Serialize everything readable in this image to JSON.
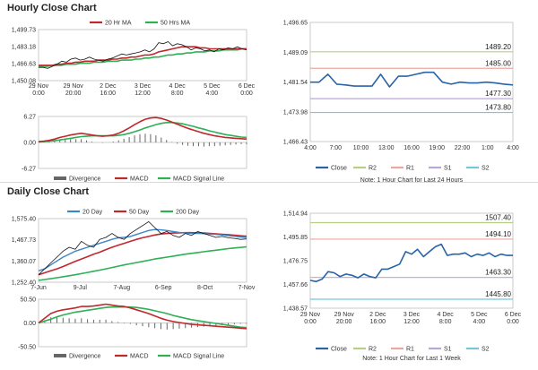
{
  "hourly": {
    "title": "Hourly Close Chart",
    "price_chart": {
      "type": "line",
      "legend": [
        "20 Hr MA",
        "50 Hrs MA"
      ],
      "legend_colors": [
        "#c0282d",
        "#2eb055"
      ],
      "y_ticks": [
        "1,499.73",
        "1,483.18",
        "1,466.63",
        "1,450.08"
      ],
      "ylim": [
        1450.08,
        1499.73
      ],
      "x_ticks": [
        "29 Nov\n0:00",
        "29 Nov\n20:00",
        "2 Dec\n16:00",
        "3 Dec\n12:00",
        "4 Dec\n8:00",
        "5 Dec\n4:00",
        "6 Dec\n0:00"
      ],
      "close": [
        1463,
        1463,
        1462,
        1464,
        1466,
        1469,
        1468,
        1471,
        1472,
        1470,
        1471,
        1473,
        1471,
        1470,
        1469,
        1471,
        1472,
        1474,
        1476,
        1475,
        1476,
        1477,
        1478,
        1480,
        1478,
        1481,
        1487,
        1486,
        1488,
        1484,
        1486,
        1485,
        1483,
        1480,
        1482,
        1481,
        1479,
        1480,
        1478,
        1481,
        1480,
        1482,
        1481,
        1483,
        1481,
        1480
      ],
      "ma20": [
        1465,
        1465,
        1465,
        1465,
        1466,
        1466,
        1467,
        1467,
        1468,
        1468,
        1469,
        1469,
        1469,
        1470,
        1470,
        1470,
        1471,
        1471,
        1472,
        1472,
        1473,
        1473,
        1474,
        1475,
        1475,
        1476,
        1478,
        1479,
        1480,
        1481,
        1482,
        1483,
        1483,
        1483,
        1483,
        1482,
        1482,
        1481,
        1481,
        1481,
        1481,
        1481,
        1481,
        1481,
        1481,
        1481
      ],
      "ma50": [
        1464,
        1464,
        1464,
        1465,
        1465,
        1465,
        1466,
        1466,
        1466,
        1467,
        1467,
        1467,
        1468,
        1468,
        1468,
        1469,
        1469,
        1469,
        1470,
        1470,
        1470,
        1471,
        1471,
        1472,
        1472,
        1473,
        1473,
        1474,
        1475,
        1475,
        1476,
        1476,
        1477,
        1477,
        1478,
        1478,
        1478,
        1479,
        1479,
        1479,
        1480,
        1480,
        1480,
        1480,
        1481,
        1481
      ]
    },
    "macd_chart": {
      "type": "line",
      "y_ticks": [
        "6.27",
        "0.00",
        "-6.27"
      ],
      "ylim": [
        -6.27,
        6.27
      ],
      "legend": [
        "Divergence",
        "MACD",
        "MACD Signal Line"
      ],
      "legend_colors": [
        "#666666",
        "#c0282d",
        "#2eb055"
      ],
      "macd": [
        0.2,
        0.3,
        0.5,
        0.8,
        1.2,
        1.5,
        1.8,
        2.0,
        2.2,
        2.0,
        1.8,
        1.6,
        1.5,
        1.6,
        1.8,
        2.2,
        2.8,
        3.5,
        4.3,
        5.0,
        5.6,
        5.9,
        6.0,
        5.8,
        5.4,
        4.9,
        4.4,
        3.9,
        3.4,
        3.0,
        2.6,
        2.2,
        1.9,
        1.6,
        1.4,
        1.2,
        1.1,
        1.0,
        0.9,
        0.8
      ],
      "signal": [
        0.1,
        0.2,
        0.3,
        0.4,
        0.6,
        0.8,
        1.0,
        1.2,
        1.4,
        1.5,
        1.6,
        1.6,
        1.6,
        1.6,
        1.6,
        1.7,
        1.9,
        2.2,
        2.6,
        3.0,
        3.5,
        3.9,
        4.3,
        4.6,
        4.8,
        4.8,
        4.7,
        4.5,
        4.2,
        3.9,
        3.5,
        3.2,
        2.8,
        2.5,
        2.2,
        1.9,
        1.7,
        1.5,
        1.3,
        1.2
      ],
      "divergence": [
        0.1,
        0.1,
        0.2,
        0.4,
        0.6,
        0.7,
        0.8,
        0.8,
        0.8,
        0.5,
        0.2,
        0.0,
        -0.1,
        0.0,
        0.2,
        0.5,
        0.9,
        1.3,
        1.7,
        2.0,
        2.1,
        2.0,
        1.7,
        1.2,
        0.6,
        0.1,
        -0.3,
        -0.6,
        -0.8,
        -0.9,
        -0.9,
        -1.0,
        -0.9,
        -0.9,
        -0.8,
        -0.7,
        -0.6,
        -0.5,
        -0.4,
        -0.4
      ]
    },
    "recent_chart": {
      "type": "line",
      "y_ticks": [
        "1,496.65",
        "1,489.09",
        "1,481.54",
        "1,473.98",
        "1,466.43"
      ],
      "ylim": [
        1466.43,
        1496.65
      ],
      "x_ticks": [
        "4:00",
        "7:00",
        "10:00",
        "13:00",
        "16:00",
        "19:00",
        "22:00",
        "1:00",
        "4:00"
      ],
      "close": [
        1481.5,
        1481.5,
        1483.5,
        1481,
        1480.8,
        1480.5,
        1480.5,
        1480.5,
        1483.5,
        1480.3,
        1483,
        1483,
        1483.5,
        1484,
        1484,
        1481.5,
        1481,
        1481.5,
        1481.3,
        1481.3,
        1481.5,
        1481.3,
        1481,
        1480.8
      ],
      "levels": [
        {
          "name": "R2",
          "value": 1489.2,
          "label": "1489.20",
          "color": "#b5cf84"
        },
        {
          "name": "R1",
          "value": 1485.0,
          "label": "1485.00",
          "color": "#e8a8a0"
        },
        {
          "name": "S1",
          "value": 1477.3,
          "label": "1477.30",
          "color": "#b8a8d8"
        },
        {
          "name": "S2",
          "value": 1473.8,
          "label": "1473.80",
          "color": "#76c8d8"
        }
      ],
      "legend": [
        "Close",
        "R2",
        "R1",
        "S1",
        "S2"
      ],
      "legend_colors": [
        "#2a63a6",
        "#b5cf84",
        "#e8a8a0",
        "#b8a8d8",
        "#76c8d8"
      ],
      "note": "Note: 1 Hour Chart for Last 24 Hours"
    }
  },
  "daily": {
    "title": "Daily Close Chart",
    "price_chart": {
      "type": "line",
      "legend": [
        "20 Day",
        "50 Day",
        "200 Day"
      ],
      "legend_colors": [
        "#3a86c8",
        "#c0282d",
        "#2eb055"
      ],
      "y_ticks": [
        "1,575.40",
        "1,467.73",
        "1,360.07",
        "1,252.40"
      ],
      "ylim": [
        1252.4,
        1575.4
      ],
      "x_ticks": [
        "7-Jun",
        "9-Jul",
        "7-Aug",
        "6-Sep",
        "8-Oct",
        "7-Nov"
      ],
      "close": [
        1290,
        1320,
        1350,
        1380,
        1410,
        1430,
        1420,
        1460,
        1440,
        1430,
        1470,
        1480,
        1500,
        1480,
        1470,
        1500,
        1520,
        1540,
        1560,
        1530,
        1500,
        1510,
        1490,
        1480,
        1500,
        1490,
        1510,
        1500,
        1490,
        1480,
        1485,
        1478,
        1475,
        1470,
        1472
      ],
      "ma20": [
        1310,
        1320,
        1340,
        1360,
        1380,
        1395,
        1410,
        1420,
        1430,
        1440,
        1450,
        1460,
        1470,
        1478,
        1480,
        1485,
        1495,
        1505,
        1515,
        1520,
        1518,
        1515,
        1510,
        1505,
        1502,
        1500,
        1500,
        1499,
        1497,
        1495,
        1492,
        1489,
        1486,
        1482,
        1480
      ],
      "ma50": [
        1290,
        1300,
        1310,
        1320,
        1332,
        1345,
        1358,
        1370,
        1382,
        1395,
        1405,
        1418,
        1430,
        1440,
        1450,
        1460,
        1470,
        1478,
        1485,
        1492,
        1497,
        1500,
        1502,
        1503,
        1504,
        1504,
        1503,
        1502,
        1500,
        1498,
        1496,
        1494,
        1491,
        1488,
        1486
      ],
      "ma200": [
        1262,
        1266,
        1270,
        1275,
        1280,
        1285,
        1290,
        1296,
        1302,
        1308,
        1314,
        1320,
        1327,
        1334,
        1340,
        1346,
        1352,
        1358,
        1364,
        1370,
        1375,
        1380,
        1385,
        1390,
        1395,
        1399,
        1403,
        1407,
        1411,
        1415,
        1419,
        1423,
        1426,
        1429,
        1432
      ]
    },
    "macd_chart": {
      "type": "line",
      "y_ticks": [
        "50.50",
        "0.00",
        "-50.50"
      ],
      "ylim": [
        -50.5,
        50.5
      ],
      "legend": [
        "Divergence",
        "MACD",
        "MACD Signal Line"
      ],
      "legend_colors": [
        "#666666",
        "#c0282d",
        "#2eb055"
      ],
      "macd": [
        0,
        10,
        20,
        25,
        28,
        30,
        32,
        35,
        35,
        36,
        38,
        40,
        38,
        36,
        35,
        32,
        28,
        24,
        20,
        15,
        10,
        6,
        3,
        1,
        -1,
        -3,
        -4,
        -5,
        -6,
        -7,
        -8,
        -9,
        -10,
        -11,
        -12
      ],
      "signal": [
        0,
        4,
        8,
        13,
        17,
        20,
        23,
        25,
        27,
        29,
        31,
        33,
        34,
        34,
        34,
        34,
        33,
        31,
        29,
        26,
        23,
        20,
        16,
        13,
        10,
        7,
        5,
        3,
        1,
        -1,
        -3,
        -5,
        -7,
        -9,
        -10
      ],
      "divergence": [
        0,
        6,
        12,
        12,
        11,
        10,
        9,
        10,
        8,
        7,
        7,
        7,
        4,
        2,
        1,
        -2,
        -5,
        -7,
        -9,
        -11,
        -13,
        -14,
        -13,
        -12,
        -11,
        -10,
        -9,
        -8,
        -7,
        -6,
        -5,
        -4,
        -3,
        -2,
        -2
      ]
    },
    "recent_chart": {
      "type": "line",
      "y_ticks": [
        "1,514.94",
        "1,495.85",
        "1,476.75",
        "1,457.66",
        "1,438.57"
      ],
      "ylim": [
        1438.57,
        1514.94
      ],
      "x_ticks": [
        "29 Nov\n0:00",
        "29 Nov\n20:00",
        "2 Dec\n16:00",
        "3 Dec\n12:00",
        "4 Dec\n8:00",
        "5 Dec\n4:00",
        "6 Dec\n0:00"
      ],
      "close": [
        1461,
        1460,
        1462,
        1468,
        1467,
        1464,
        1466,
        1465,
        1463,
        1466,
        1464,
        1463,
        1470,
        1470,
        1472,
        1474,
        1484,
        1482,
        1486,
        1480,
        1484,
        1488,
        1490,
        1481,
        1482,
        1482,
        1483,
        1480,
        1482,
        1481,
        1483,
        1480,
        1482,
        1481,
        1481
      ],
      "levels": [
        {
          "name": "R2",
          "value": 1507.4,
          "label": "1507.40",
          "color": "#b5cf84"
        },
        {
          "name": "R1",
          "value": 1494.1,
          "label": "1494.10",
          "color": "#e8a8a0"
        },
        {
          "name": "S1",
          "value": 1463.3,
          "label": "1463.30",
          "color": "#b8a8d8"
        },
        {
          "name": "S2",
          "value": 1445.8,
          "label": "1445.80",
          "color": "#76c8d8"
        }
      ],
      "legend": [
        "Close",
        "R2",
        "R1",
        "S1",
        "S2"
      ],
      "legend_colors": [
        "#2a63a6",
        "#b5cf84",
        "#e8a8a0",
        "#b8a8d8",
        "#76c8d8"
      ],
      "note": "Note: 1 Hour Chart for Last 1 Week"
    }
  }
}
